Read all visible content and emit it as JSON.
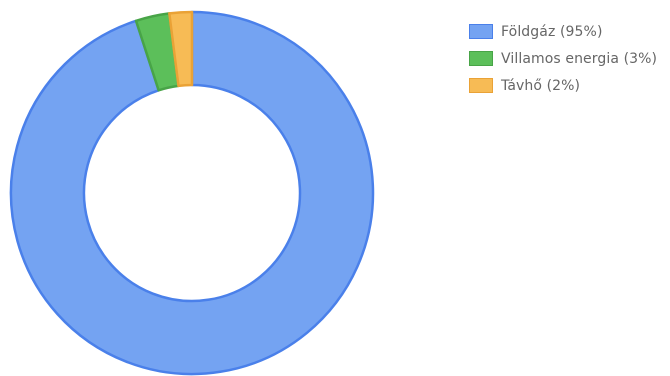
{
  "chart_data": {
    "type": "pie",
    "variant": "doughnut",
    "categories": [
      "Földgáz",
      "Villamos energia",
      "Távhő"
    ],
    "values": [
      95,
      3,
      2
    ],
    "unit": "%",
    "legend_labels": [
      "Földgáz (95%)",
      "Villamos energia (3%)",
      "Távhő (2%)"
    ],
    "colors": [
      "#74a3f2",
      "#5cbf5a",
      "#f7bb55"
    ],
    "border_colors": [
      "#4a80ea",
      "#48a447",
      "#eaa236"
    ],
    "legend_position": "right"
  }
}
